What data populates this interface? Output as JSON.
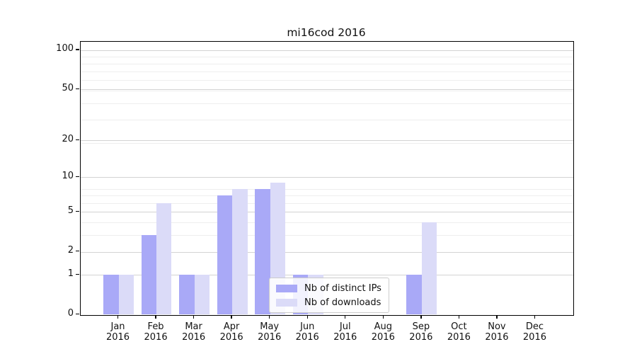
{
  "title": "mi16cod 2016",
  "chart_data": {
    "type": "bar",
    "title": "mi16cod 2016",
    "categories": [
      "Jan",
      "Feb",
      "Mar",
      "Apr",
      "May",
      "Jun",
      "Jul",
      "Aug",
      "Sep",
      "Oct",
      "Nov",
      "Dec"
    ],
    "category_year": "2016",
    "series": [
      {
        "name": "Nb of distinct IPs",
        "color": "#a9a9f7",
        "values": [
          1,
          3,
          1,
          7,
          8,
          1,
          0,
          0,
          1,
          0,
          0,
          0
        ]
      },
      {
        "name": "Nb of downloads",
        "color": "#dbdbf8",
        "values": [
          1,
          6,
          1,
          8,
          9,
          1,
          0,
          0,
          4,
          0,
          0,
          0
        ]
      }
    ],
    "xlabel": "",
    "ylabel": "",
    "y_scale": "log10(1+value)",
    "y_ticks": [
      0,
      1,
      2,
      5,
      10,
      20,
      50,
      100
    ],
    "y_minor_gridlines": [
      3,
      4,
      6,
      7,
      8,
      19,
      29,
      39,
      49,
      59,
      69,
      79,
      89
    ],
    "ylim": [
      0,
      115
    ],
    "grid": true,
    "legend_position": "lower center"
  },
  "colors": {
    "major_grid": "#d3d3d3",
    "minor_grid": "#eeeeee",
    "spine": "#000000",
    "background": "#ffffff"
  }
}
